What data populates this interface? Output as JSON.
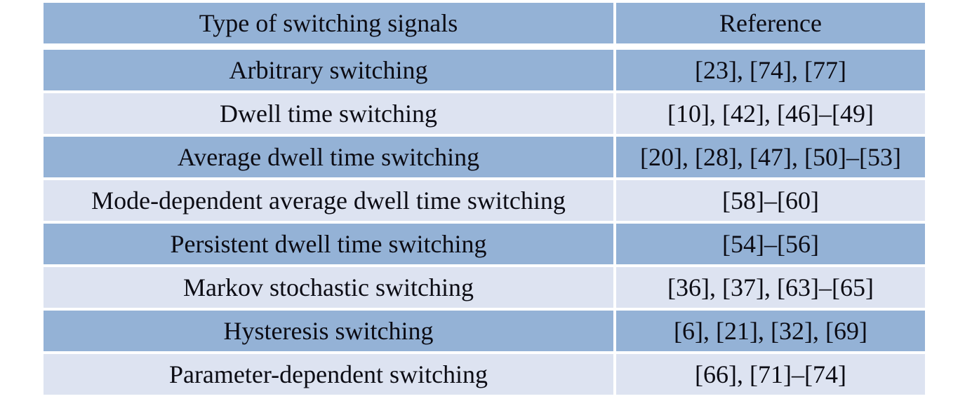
{
  "table": {
    "header": {
      "col_type": "Type of switching signals",
      "col_reference": "Reference"
    },
    "rows": [
      {
        "type": "Arbitrary switching",
        "reference": "[23], [74], [77]"
      },
      {
        "type": "Dwell time switching",
        "reference": "[10], [42], [46]–[49]"
      },
      {
        "type": "Average dwell time switching",
        "reference": "[20], [28], [47], [50]–[53]"
      },
      {
        "type": "Mode-dependent average dwell time switching",
        "reference": "[58]–[60]"
      },
      {
        "type": "Persistent dwell time switching",
        "reference": "[54]–[56]"
      },
      {
        "type": "Markov stochastic switching",
        "reference": "[36], [37], [63]–[65]"
      },
      {
        "type": "Hysteresis switching",
        "reference": "[6], [21], [32], [69]"
      },
      {
        "type": "Parameter-dependent switching",
        "reference": "[66], [71]–[74]"
      }
    ],
    "colors": {
      "header_row_bg": "#94b2d6",
      "odd_row_bg": "#94b2d6",
      "even_row_bg": "#dde3f1",
      "divider": "#ffffff",
      "page_bg": "#ffffff",
      "text": "#0c0c14"
    }
  },
  "chart_data": {
    "type": "table",
    "title": "",
    "columns": [
      "Type of switching signals",
      "Reference"
    ],
    "rows": [
      [
        "Arbitrary switching",
        "[23], [74], [77]"
      ],
      [
        "Dwell time switching",
        "[10], [42], [46]–[49]"
      ],
      [
        "Average dwell time switching",
        "[20], [28], [47], [50]–[53]"
      ],
      [
        "Mode-dependent average dwell time switching",
        "[58]–[60]"
      ],
      [
        "Persistent dwell time switching",
        "[54]–[56]"
      ],
      [
        "Markov stochastic switching",
        "[36], [37], [63]–[65]"
      ],
      [
        "Hysteresis switching",
        "[6], [21], [32], [69]"
      ],
      [
        "Parameter-dependent switching",
        "[66], [71]–[74]"
      ]
    ]
  }
}
